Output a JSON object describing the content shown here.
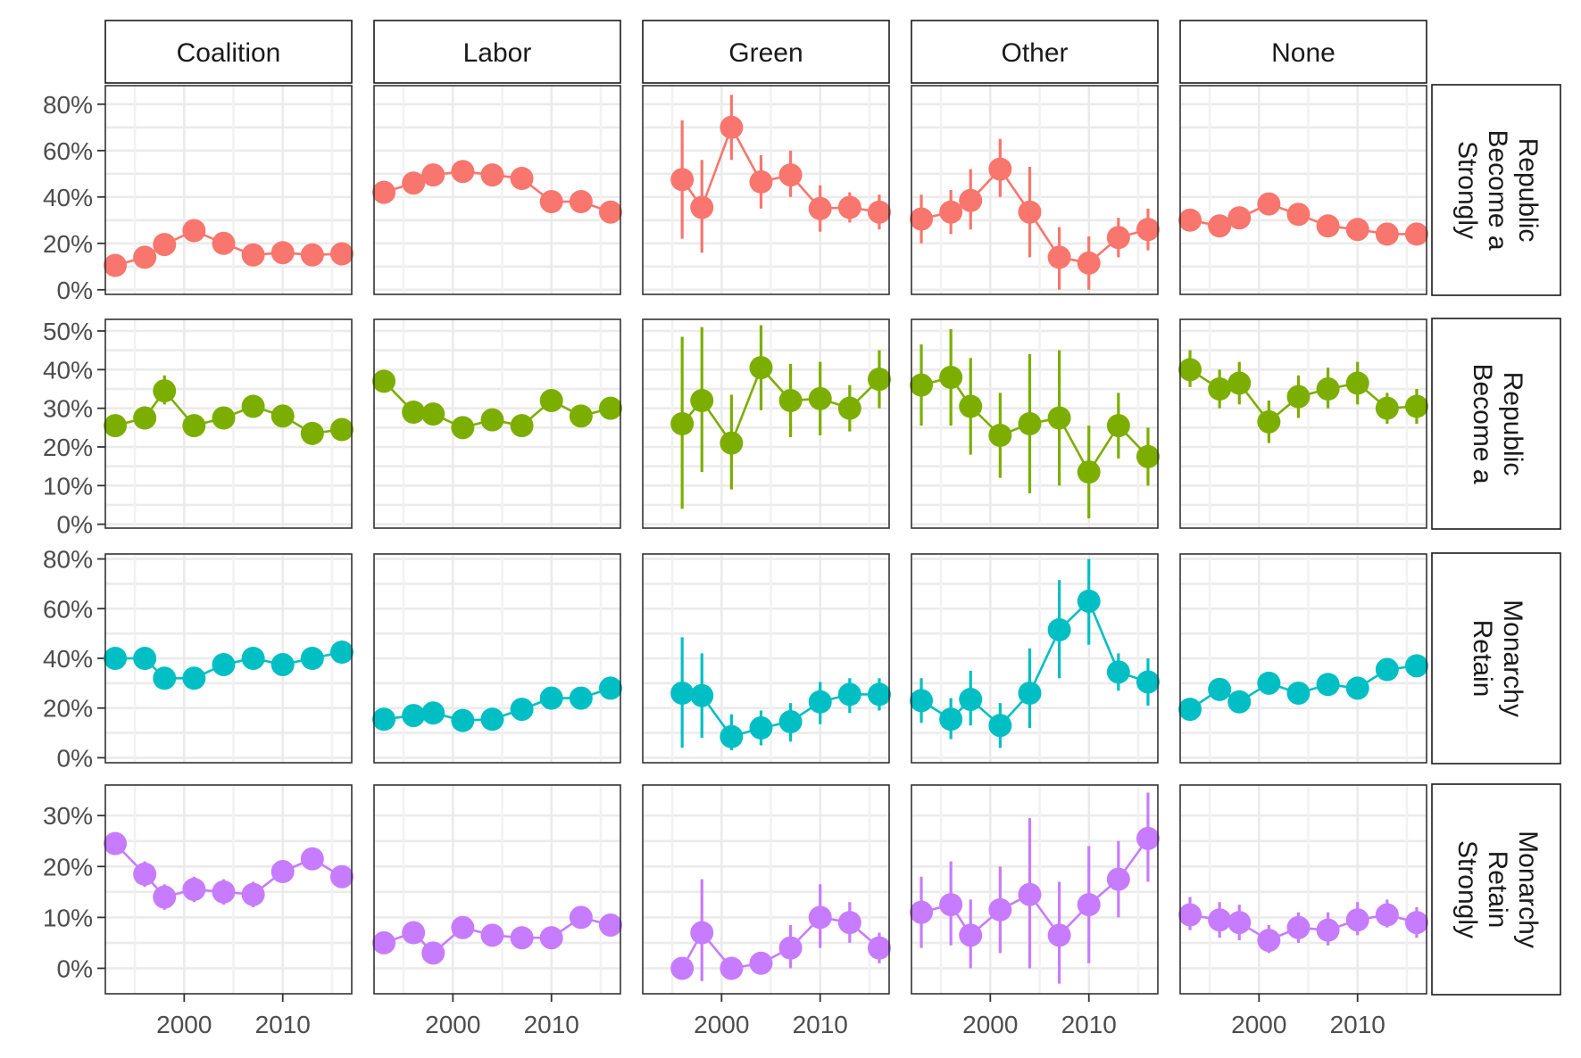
{
  "chart_data": {
    "type": "line",
    "facet_layout": "grid",
    "columns": [
      "Coalition",
      "Labor",
      "Green",
      "Other",
      "None"
    ],
    "rows": [
      {
        "label": "Strongly Become a Republic",
        "label_lines": [
          "Strongly",
          "Become a",
          "Republic"
        ],
        "color": "#F8766D",
        "yticks": [
          0,
          20,
          40,
          60,
          80
        ],
        "ylim": [
          -2,
          88
        ]
      },
      {
        "label": "Become a Republic",
        "label_lines": [
          "Become a",
          "Republic"
        ],
        "color": "#7CAE00",
        "yticks": [
          0,
          10,
          20,
          30,
          40,
          50
        ],
        "ylim": [
          -1,
          53
        ]
      },
      {
        "label": "Retain Monarchy",
        "label_lines": [
          "Retain",
          "Monarchy"
        ],
        "color": "#00BFC4",
        "yticks": [
          0,
          20,
          40,
          60,
          80
        ],
        "ylim": [
          -2,
          82
        ]
      },
      {
        "label": "Strongly Retain Monarchy",
        "label_lines": [
          "Strongly",
          "Retain",
          "Monarchy"
        ],
        "color": "#C77CFF",
        "yticks": [
          0,
          10,
          20,
          30
        ],
        "ylim": [
          -5,
          36
        ]
      }
    ],
    "x": [
      1993,
      1996,
      1998,
      2001,
      2004,
      2007,
      2010,
      2013,
      2016
    ],
    "xlim": [
      1992,
      2017
    ],
    "xticks": [
      2000,
      2010
    ],
    "xtick_labels": [
      "2000",
      "2010"
    ],
    "ytick_suffix": "%",
    "panels": [
      [
        {
          "values": [
            10.5,
            14,
            19.5,
            25.5,
            20,
            15,
            16,
            15,
            15.5
          ],
          "lower": [
            9,
            12,
            17.5,
            23,
            18,
            13,
            14,
            13.5,
            14
          ],
          "upper": [
            12,
            16,
            21.5,
            28,
            22,
            17,
            18,
            16.5,
            17
          ]
        },
        {
          "values": [
            42,
            46,
            49.5,
            51,
            49.5,
            48,
            38,
            38,
            33.5
          ],
          "lower": [
            40,
            44,
            47.5,
            49,
            47.5,
            46,
            36,
            36,
            31.5
          ],
          "upper": [
            44,
            48,
            51.5,
            53,
            51.5,
            50,
            40,
            40,
            35.5
          ]
        },
        {
          "values": [
            null,
            47.5,
            35.5,
            70,
            46.5,
            49.5,
            35,
            35.5,
            33.5
          ],
          "lower": [
            null,
            22,
            16,
            56,
            35,
            40,
            25,
            29,
            26
          ],
          "upper": [
            null,
            73,
            56,
            84,
            58,
            60,
            45,
            42,
            41
          ]
        },
        {
          "values": [
            30.5,
            33.5,
            38.5,
            52,
            33.5,
            14,
            11.5,
            22.5,
            26
          ],
          "lower": [
            20,
            24,
            26,
            40,
            14,
            0,
            0,
            14,
            17
          ],
          "upper": [
            41,
            43,
            52,
            65,
            53,
            27,
            23,
            31,
            35
          ]
        },
        {
          "values": [
            30,
            27.5,
            31,
            37,
            32.5,
            27.5,
            26,
            24,
            24
          ],
          "lower": [
            27,
            24,
            27,
            33,
            29,
            24,
            23,
            21.5,
            22
          ],
          "upper": [
            33,
            31,
            35,
            41,
            37,
            31,
            29,
            26.5,
            26.5
          ]
        }
      ],
      [
        {
          "values": [
            25.5,
            27.5,
            34.5,
            25.5,
            27.5,
            30.5,
            28,
            23.5,
            24.5
          ],
          "lower": [
            23.5,
            24.5,
            31,
            23.5,
            25,
            28,
            26,
            22,
            23
          ],
          "upper": [
            27.5,
            30.5,
            38.5,
            27.5,
            30,
            33.5,
            30,
            25,
            26
          ]
        },
        {
          "values": [
            37,
            29,
            28.5,
            25,
            27,
            25.5,
            32,
            28,
            30
          ],
          "lower": [
            35,
            26.5,
            26,
            22.5,
            24.5,
            23,
            29.5,
            26,
            28
          ],
          "upper": [
            39,
            31.5,
            31,
            27.5,
            29.5,
            28,
            34.5,
            30,
            32
          ]
        },
        {
          "values": [
            26,
            32,
            21,
            40.5,
            32,
            32.5,
            30,
            37.5,
            null
          ],
          "lower": [
            4,
            13.5,
            9,
            29.5,
            22.5,
            23,
            24,
            30,
            null
          ],
          "upper": [
            48.5,
            51,
            33.5,
            51.5,
            41.5,
            42,
            36,
            45,
            null
          ],
          "x": [
            1996,
            1998,
            2001,
            2004,
            2007,
            2010,
            2013,
            2016,
            2017
          ]
        },
        {
          "values": [
            36,
            38,
            30.5,
            23,
            26,
            27.5,
            13.5,
            25.5,
            17.5
          ],
          "lower": [
            25.5,
            25.5,
            18,
            12,
            8,
            10,
            1.5,
            17,
            10
          ],
          "upper": [
            46.5,
            50.5,
            43,
            34,
            44,
            45,
            25.5,
            34,
            25
          ]
        },
        {
          "values": [
            40,
            35,
            36.5,
            26.5,
            33,
            35,
            36.5,
            30,
            30.5
          ],
          "lower": [
            35.5,
            30,
            31,
            21,
            27.5,
            30,
            31,
            26,
            26
          ],
          "upper": [
            45,
            40,
            42,
            32,
            38.5,
            40.5,
            42,
            34,
            35
          ]
        }
      ],
      [
        {
          "values": [
            40,
            40,
            32,
            32,
            37.5,
            40,
            37.5,
            40,
            42.5
          ],
          "lower": [
            38,
            38,
            30,
            30,
            35.5,
            38,
            35.5,
            38,
            40.5
          ],
          "upper": [
            42,
            42,
            34,
            34,
            39.5,
            42,
            39.5,
            42,
            44.5
          ]
        },
        {
          "values": [
            15.5,
            17,
            18,
            15,
            15.5,
            19.5,
            24,
            24,
            28
          ],
          "lower": [
            14,
            15.5,
            16.5,
            13.5,
            14,
            18,
            22.5,
            22.5,
            26
          ],
          "upper": [
            17,
            18.5,
            19.5,
            16.5,
            17,
            21,
            25.5,
            25.5,
            30
          ]
        },
        {
          "values": [
            26,
            25,
            8.5,
            12,
            14.5,
            22.5,
            25.5,
            25.5,
            null
          ],
          "lower": [
            4,
            8,
            3,
            5,
            6.5,
            13.5,
            18,
            19,
            null
          ],
          "upper": [
            48.5,
            42,
            17.5,
            19,
            22,
            30.5,
            32,
            32,
            null
          ],
          "x": [
            1996,
            1998,
            2001,
            2004,
            2007,
            2010,
            2013,
            2016,
            2017
          ]
        },
        {
          "values": [
            23,
            15.5,
            23.5,
            13,
            26,
            51.5,
            63,
            34.5,
            30.5
          ],
          "lower": [
            14,
            7.5,
            13,
            4,
            12,
            32,
            45.5,
            27,
            21
          ],
          "upper": [
            32,
            24,
            35,
            22,
            44,
            71.5,
            80,
            42,
            40
          ]
        },
        {
          "values": [
            19.5,
            27.5,
            22.5,
            30,
            26,
            29.5,
            28,
            35.5,
            37
          ],
          "lower": [
            17,
            23.5,
            19,
            26,
            22,
            25.5,
            24,
            32,
            34
          ],
          "upper": [
            22,
            31.5,
            26,
            34,
            30,
            33.5,
            32,
            39,
            40
          ]
        }
      ],
      [
        {
          "values": [
            24.5,
            18.5,
            14,
            15.5,
            15,
            14.5,
            19,
            21.5,
            18
          ],
          "lower": [
            22.5,
            16,
            11.5,
            13,
            12.5,
            12,
            17,
            19.5,
            16
          ],
          "upper": [
            26.5,
            21,
            16.5,
            18,
            17.5,
            17,
            21,
            23.5,
            20
          ]
        },
        {
          "values": [
            5,
            7,
            3,
            8,
            6.5,
            6,
            6,
            10,
            8.5
          ],
          "lower": [
            4,
            5.5,
            2,
            6.5,
            5,
            4.5,
            4.5,
            8.5,
            7
          ],
          "upper": [
            6.5,
            8.5,
            4.5,
            9.5,
            8,
            7.5,
            7.5,
            11.5,
            10
          ]
        },
        {
          "values": [
            0,
            7,
            0,
            1,
            4,
            10,
            9,
            4,
            null
          ],
          "lower": [
            0,
            -2.5,
            0,
            0,
            0,
            4,
            5,
            1,
            null
          ],
          "upper": [
            0,
            17.5,
            0,
            2.5,
            8.5,
            16.5,
            13,
            7,
            null
          ],
          "x": [
            1996,
            1998,
            2001,
            2004,
            2007,
            2010,
            2013,
            2016,
            2017
          ]
        },
        {
          "values": [
            11,
            12.5,
            6.5,
            11.5,
            14.5,
            6.5,
            12.5,
            17.5,
            25.5
          ],
          "lower": [
            4,
            4.5,
            0,
            3,
            0,
            -3,
            1,
            10,
            17
          ],
          "upper": [
            18,
            21,
            13.5,
            20,
            29.5,
            17,
            24,
            25,
            34.5
          ]
        },
        {
          "values": [
            10.5,
            9.5,
            9,
            5.5,
            8,
            7.5,
            9.5,
            10.5,
            9
          ],
          "lower": [
            7.5,
            6,
            5.5,
            3,
            5,
            4.5,
            6.5,
            8,
            6
          ],
          "upper": [
            14,
            13,
            12.5,
            8.5,
            11,
            11,
            13,
            13.5,
            12
          ]
        }
      ]
    ],
    "grid": true,
    "legend": "none",
    "title": "",
    "xlabel": "",
    "ylabel": ""
  }
}
